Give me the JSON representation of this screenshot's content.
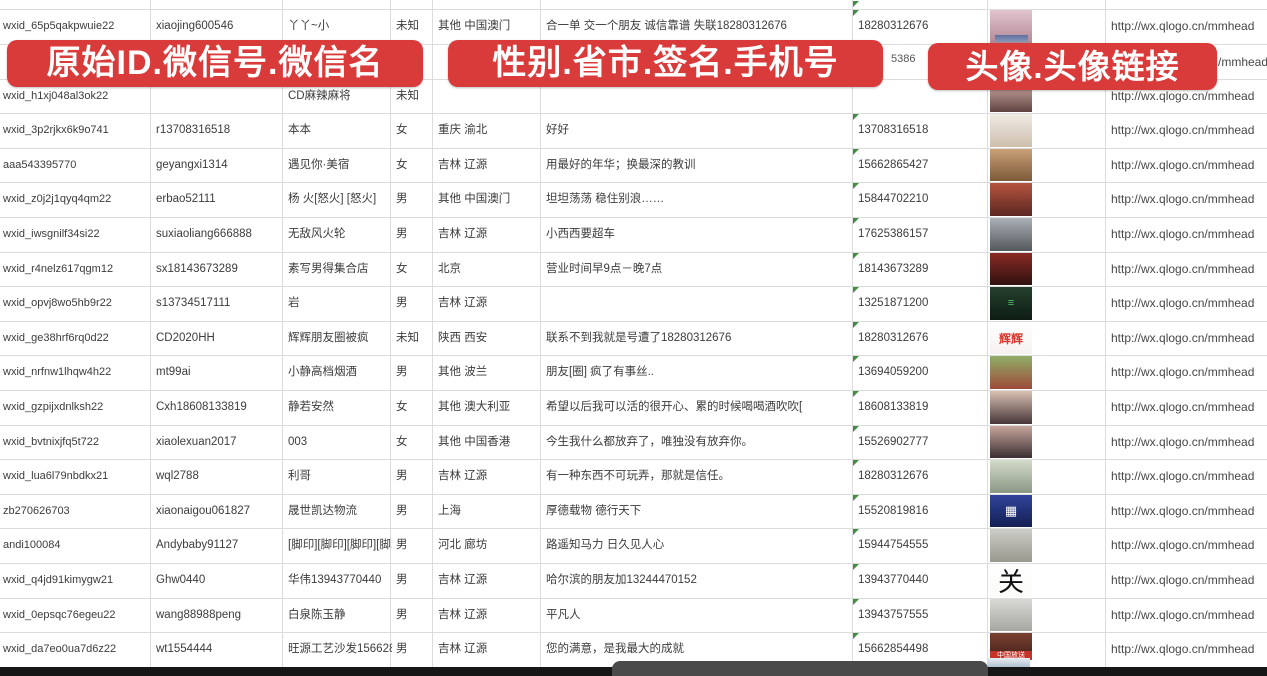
{
  "banners": [
    {
      "text": "原始ID.微信号.微信名"
    },
    {
      "text": "性别.省市.签名.手机号"
    },
    {
      "text": "头像.头像链接"
    }
  ],
  "fragments": {
    "row2_phone": "5386",
    "row2_url": "/mmhead"
  },
  "colors": {
    "banner_red": "#d93a3a",
    "grid_line": "#dcdcdc",
    "cell_text": "#3c3c3c",
    "error_triangle_green": "#3f8f3f",
    "bottom_bar": "#161616",
    "scrollbar_pill": "#4a4a4a"
  },
  "table": {
    "rows": [
      {
        "id": "wxid_65p5qakpwuie22",
        "wechat_no": "xiaojing600546",
        "name": "丫丫~小",
        "gender": "未知",
        "region": "其他 中国澳门",
        "signature": "合一单 交一个朋友 诚信靠谱 失联18280312676",
        "phone": "18280312676",
        "url": "http://wx.qlogo.cn/mmhead",
        "avatar": {
          "c1": "#e3c4cf",
          "c2": "#b18995"
        }
      },
      {
        "id": "",
        "wechat_no": "",
        "name": "",
        "gender": "",
        "region": "",
        "signature": "",
        "phone": "",
        "url": "",
        "avatar": null
      },
      {
        "id": "wxid_h1xj048al3ok22",
        "wechat_no": "",
        "name": "CD麻辣麻将",
        "gender": "未知",
        "region": "",
        "signature": "",
        "phone": "",
        "url": "http://wx.qlogo.cn/mmhead",
        "avatar": {
          "c1": "#d8b3ab",
          "c2": "#604442"
        }
      },
      {
        "id": "wxid_3p2rjkx6k9o741",
        "wechat_no": "r13708316518",
        "name": "本本",
        "gender": "女",
        "region": "重庆 渝北",
        "signature": "好好",
        "phone": "13708316518",
        "url": "http://wx.qlogo.cn/mmhead",
        "avatar": {
          "c1": "#efeae2",
          "c2": "#cdbfae"
        }
      },
      {
        "id": "aaa543395770",
        "wechat_no": "geyangxi1314",
        "name": "遇见你·美宿",
        "gender": "女",
        "region": "吉林 辽源",
        "signature": "用最好的年华；换最深的教训",
        "phone": "15662865427",
        "url": "http://wx.qlogo.cn/mmhead",
        "avatar": {
          "c1": "#c9a078",
          "c2": "#7d5a38"
        }
      },
      {
        "id": "wxid_z0j2j1qyq4qm22",
        "wechat_no": "erbao52111",
        "name": "杨 火[怒火] [怒火]",
        "gender": "男",
        "region": "其他 中国澳门",
        "signature": "坦坦荡荡 稳住别浪……",
        "phone": "15844702210",
        "url": "http://wx.qlogo.cn/mmhead",
        "avatar": {
          "c1": "#b5543f",
          "c2": "#5c2722"
        }
      },
      {
        "id": "wxid_iwsgnilf34si22",
        "wechat_no": "suxiaoliang666888",
        "name": "无敌风火轮",
        "gender": "男",
        "region": "吉林 辽源",
        "signature": "小西西要超车",
        "phone": "17625386157",
        "url": "http://wx.qlogo.cn/mmhead",
        "avatar": {
          "c1": "#aab0b5",
          "c2": "#53585d"
        }
      },
      {
        "id": "wxid_r4nelz617qgm12",
        "wechat_no": "sx18143673289",
        "name": "素写男得集合店",
        "gender": "女",
        "region": "北京",
        "signature": "营业时间早9点－晚7点",
        "phone": "18143673289",
        "url": "http://wx.qlogo.cn/mmhead",
        "avatar": {
          "c1": "#8a2a24",
          "c2": "#2f1210"
        }
      },
      {
        "id": "wxid_opvj8wo5hb9r22",
        "wechat_no": "s13734517111",
        "name": "岩",
        "gender": "男",
        "region": "吉林 辽源",
        "signature": "",
        "phone": "13251871200",
        "url": "http://wx.qlogo.cn/mmhead",
        "avatar": {
          "c1": "#24402d",
          "c2": "#0e1c14",
          "glyph": "≡",
          "glyph_color": "#57c06a",
          "glyph_size": 11
        }
      },
      {
        "id": "wxid_ge38hrf6rq0d22",
        "wechat_no": "CD2020HH",
        "name": "辉辉朋友圈被疯",
        "gender": "未知",
        "region": "陕西 西安",
        "signature": "联系不到我就是号遭了18280312676",
        "phone": "18280312676",
        "url": "http://wx.qlogo.cn/mmhead",
        "avatar": {
          "c1": "#ffffff",
          "c2": "#f6f1f1",
          "glyph": "辉辉",
          "glyph_color": "#d63b2f",
          "glyph_size": 12,
          "glyph_bold": true
        }
      },
      {
        "id": "wxid_nrfnw1lhqw4h22",
        "wechat_no": "mt99ai",
        "name": "小静高档烟酒",
        "gender": "男",
        "region": "其他 波兰",
        "signature": "朋友[圈] 疯了有事丝..",
        "phone": "13694059200",
        "url": "http://wx.qlogo.cn/mmhead",
        "avatar": {
          "c1": "#8fae67",
          "c2": "#9e4a3a"
        }
      },
      {
        "id": "wxid_gzpijxdnlksh22",
        "wechat_no": "Cxh18608133819",
        "name": "静若安然",
        "gender": "女",
        "region": "其他 澳大利亚",
        "signature": "希望以后我可以活的很开心、累的时候喝喝酒吹吹[",
        "phone": "18608133819",
        "url": "http://wx.qlogo.cn/mmhead",
        "avatar": {
          "c1": "#d9c0b2",
          "c2": "#473639"
        }
      },
      {
        "id": "wxid_bvtnixjfq5t722",
        "wechat_no": "xiaolexuan2017",
        "name": "003",
        "gender": "女",
        "region": "其他 中国香港",
        "signature": "今生我什么都放弃了，唯独没有放弃你。",
        "phone": "15526902777",
        "url": "http://wx.qlogo.cn/mmhead",
        "avatar": {
          "c1": "#c6a59c",
          "c2": "#3c2f33"
        }
      },
      {
        "id": "wxid_lua6l79nbdkx21",
        "wechat_no": "wql2788",
        "name": "利哥",
        "gender": "男",
        "region": "吉林 辽源",
        "signature": "有一种东西不可玩弄，那就是信任。",
        "phone": "18280312676",
        "url": "http://wx.qlogo.cn/mmhead",
        "avatar": {
          "c1": "#d3dbc9",
          "c2": "#8b9884"
        }
      },
      {
        "id": "zb270626703",
        "wechat_no": "xiaonaigou061827",
        "name": "晟世凯达物流",
        "gender": "男",
        "region": "上海",
        "signature": "厚德载物 德行天下",
        "phone": "15520819816",
        "url": "http://wx.qlogo.cn/mmhead",
        "avatar": {
          "c1": "#31449b",
          "c2": "#131f52",
          "glyph": "▦",
          "glyph_color": "#ffffff",
          "glyph_size": 13
        }
      },
      {
        "id": "andi100084",
        "wechat_no": "Andybaby91127",
        "name": "[脚印][脚印][脚印][脚印]",
        "gender": "男",
        "region": "河北 廊坊",
        "signature": "路遥知马力 日久见人心",
        "phone": "15944754555",
        "url": "http://wx.qlogo.cn/mmhead",
        "avatar": {
          "c1": "#cdcdc7",
          "c2": "#98988f"
        }
      },
      {
        "id": "wxid_q4jd91kimygw21",
        "wechat_no": "Ghw0440",
        "name": "华伟13943770440",
        "gender": "男",
        "region": "吉林 辽源",
        "signature": "哈尔滨的朋友加13244470152",
        "phone": "13943770440",
        "url": "http://wx.qlogo.cn/mmhead",
        "avatar": {
          "c1": "#ffffff",
          "c2": "#fbfbf8",
          "glyph": "关",
          "glyph_color": "#111111",
          "glyph_size": 26,
          "serif": true
        }
      },
      {
        "id": "wxid_0epsqc76egeu22",
        "wechat_no": "wang88988peng",
        "name": "白泉陈玉静",
        "gender": "男",
        "region": "吉林 辽源",
        "signature": "平凡人",
        "phone": "13943757555",
        "url": "http://wx.qlogo.cn/mmhead",
        "avatar": {
          "c1": "#d9d9d5",
          "c2": "#a7a7a1"
        }
      },
      {
        "id": "wxid_da7eo0ua7d6z22",
        "wechat_no": "wt1554444",
        "name": "旺源工艺沙发15662854",
        "gender": "男",
        "region": "吉林 辽源",
        "signature": "您的满意，是我最大的成就",
        "phone": "15662854498",
        "url": "http://wx.qlogo.cn/mmhead",
        "avatar": {
          "c1": "#79402f",
          "c2": "#40201a",
          "band": "中国放送",
          "h": 27
        }
      }
    ],
    "top_avatar_fragment": {
      "c1": "#5e6f9e",
      "c2": "#8a97b8"
    },
    "bottom_avatar_fragment": {
      "c1": "#e8edf2",
      "c2": "#9db3c6"
    }
  }
}
